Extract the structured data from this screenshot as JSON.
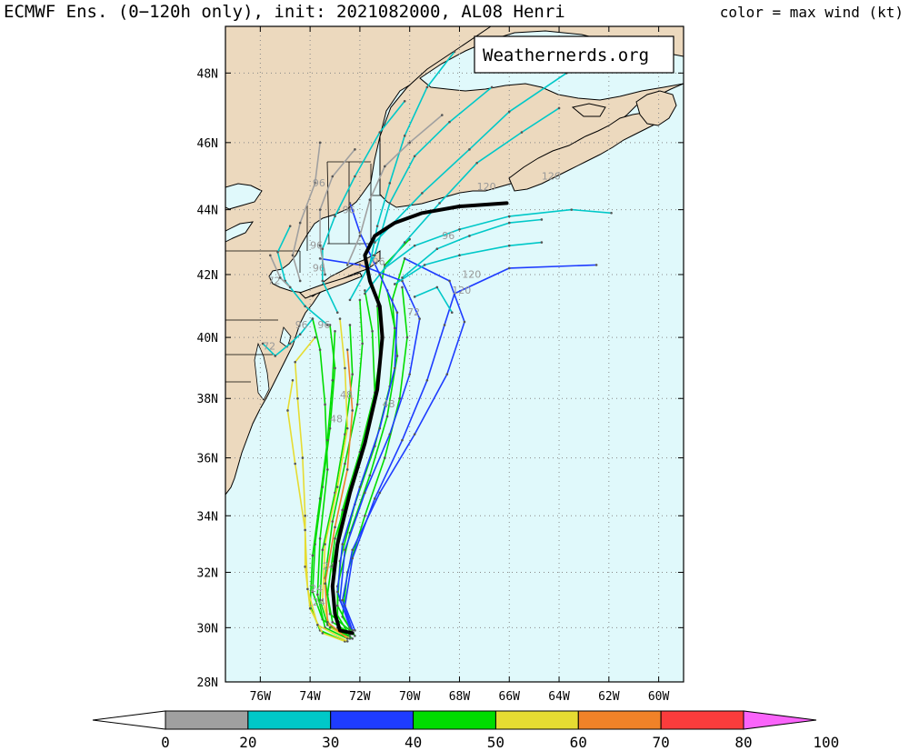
{
  "header": {
    "title": "ECMWF Ens. (0−120h only), init: 2021082000, AL08 Henri",
    "legend_label": "color = max wind (kt)"
  },
  "watermark": "Weathernerds.org",
  "map": {
    "projection": "mercator",
    "lon_range": [
      -77.4,
      -59.0
    ],
    "lat_range": [
      28.0,
      49.3
    ],
    "lon_ticks": [
      "76W",
      "74W",
      "72W",
      "70W",
      "68W",
      "66W",
      "64W",
      "62W",
      "60W"
    ],
    "lat_ticks": [
      "28N",
      "30N",
      "32N",
      "34N",
      "36N",
      "38N",
      "40N",
      "42N",
      "44N",
      "46N",
      "48N"
    ],
    "ocean_color": "#e0f9fb",
    "land_color": "#ecd9be",
    "grid": "dotted"
  },
  "colorbar": {
    "ticks": [
      "0",
      "20",
      "30",
      "40",
      "50",
      "60",
      "70",
      "80",
      "100"
    ],
    "colors": [
      "#ffffff",
      "#a0a0a0",
      "#00c8c8",
      "#1e3cff",
      "#00dc00",
      "#e6dc32",
      "#f08228",
      "#fa3c3c",
      "#f00082",
      "#fa64fa"
    ]
  },
  "mean_track": {
    "name": "ensemble mean",
    "points": [
      [
        -72.3,
        29.8
      ],
      [
        -72.8,
        29.9
      ],
      [
        -73.0,
        30.5
      ],
      [
        -73.1,
        31.5
      ],
      [
        -72.9,
        33.0
      ],
      [
        -72.4,
        34.8
      ],
      [
        -71.8,
        36.5
      ],
      [
        -71.3,
        38.3
      ],
      [
        -71.1,
        40.0
      ],
      [
        -71.2,
        41.0
      ],
      [
        -71.6,
        41.8
      ],
      [
        -71.8,
        42.6
      ],
      [
        -71.4,
        43.2
      ],
      [
        -70.6,
        43.6
      ],
      [
        -69.5,
        43.9
      ],
      [
        -68.0,
        44.1
      ],
      [
        -66.1,
        44.2
      ]
    ]
  },
  "member_tracks": [
    {
      "color": "#00dc00",
      "points": [
        [
          -72.4,
          29.8
        ],
        [
          -73.1,
          30.2
        ],
        [
          -73.3,
          31.2
        ],
        [
          -73.0,
          33.2
        ],
        [
          -72.3,
          35.2
        ],
        [
          -71.6,
          37.2
        ],
        [
          -71.2,
          39.3
        ],
        [
          -71.3,
          41.0
        ],
        [
          -71.0,
          42.3
        ],
        [
          -70.0,
          43.1
        ]
      ]
    },
    {
      "color": "#00dc00",
      "points": [
        [
          -72.5,
          29.7
        ],
        [
          -73.3,
          30.1
        ],
        [
          -73.6,
          31.0
        ],
        [
          -73.5,
          32.8
        ],
        [
          -73.0,
          34.8
        ],
        [
          -72.6,
          36.8
        ],
        [
          -72.3,
          38.8
        ],
        [
          -72.4,
          40.4
        ]
      ]
    },
    {
      "color": "#00dc00",
      "points": [
        [
          -72.3,
          29.6
        ],
        [
          -72.9,
          30.0
        ],
        [
          -72.9,
          31.5
        ],
        [
          -72.4,
          33.4
        ],
        [
          -71.6,
          35.4
        ],
        [
          -70.9,
          37.4
        ],
        [
          -70.5,
          39.4
        ],
        [
          -70.7,
          41.2
        ],
        [
          -70.2,
          42.5
        ]
      ]
    },
    {
      "color": "#00dc00",
      "points": [
        [
          -72.6,
          29.7
        ],
        [
          -73.5,
          30.3
        ],
        [
          -73.9,
          31.3
        ],
        [
          -73.8,
          33.0
        ],
        [
          -73.5,
          35.0
        ],
        [
          -73.2,
          37.0
        ],
        [
          -73.0,
          39.0
        ],
        [
          -73.2,
          40.4
        ]
      ]
    },
    {
      "color": "#00dc00",
      "points": [
        [
          -72.2,
          29.7
        ],
        [
          -72.7,
          30.4
        ],
        [
          -72.5,
          32.0
        ],
        [
          -71.8,
          34.0
        ],
        [
          -71.0,
          36.0
        ],
        [
          -70.4,
          38.0
        ],
        [
          -70.1,
          40.0
        ],
        [
          -70.3,
          41.6
        ]
      ]
    },
    {
      "color": "#00dc00",
      "points": [
        [
          -72.4,
          29.9
        ],
        [
          -73.2,
          30.5
        ],
        [
          -73.4,
          31.8
        ],
        [
          -73.1,
          33.8
        ],
        [
          -72.6,
          35.8
        ],
        [
          -72.1,
          37.8
        ],
        [
          -71.9,
          39.8
        ],
        [
          -72.0,
          41.2
        ]
      ]
    },
    {
      "color": "#00dc00",
      "points": [
        [
          -72.5,
          29.6
        ],
        [
          -73.4,
          30.0
        ],
        [
          -73.7,
          31.2
        ],
        [
          -73.6,
          33.2
        ],
        [
          -73.3,
          35.6
        ],
        [
          -73.4,
          37.8
        ],
        [
          -73.6,
          39.6
        ],
        [
          -73.9,
          40.6
        ]
      ]
    },
    {
      "color": "#00dc00",
      "points": [
        [
          -72.3,
          29.8
        ],
        [
          -72.9,
          30.8
        ],
        [
          -72.8,
          32.4
        ],
        [
          -72.2,
          34.4
        ],
        [
          -71.4,
          36.4
        ],
        [
          -70.8,
          38.4
        ],
        [
          -70.6,
          40.3
        ],
        [
          -70.9,
          41.5
        ]
      ]
    },
    {
      "color": "#00dc00",
      "points": [
        [
          -72.6,
          29.5
        ],
        [
          -73.6,
          29.9
        ],
        [
          -74.0,
          30.8
        ],
        [
          -73.9,
          32.6
        ],
        [
          -73.6,
          34.6
        ],
        [
          -73.3,
          36.6
        ],
        [
          -73.1,
          38.6
        ],
        [
          -73.0,
          40.2
        ]
      ]
    },
    {
      "color": "#00dc00",
      "points": [
        [
          -72.4,
          29.7
        ],
        [
          -73.0,
          30.6
        ],
        [
          -73.1,
          32.2
        ],
        [
          -72.7,
          34.2
        ],
        [
          -72.0,
          36.2
        ],
        [
          -71.4,
          38.2
        ],
        [
          -71.5,
          40.2
        ],
        [
          -71.8,
          41.5
        ]
      ]
    },
    {
      "color": "#e6dc32",
      "points": [
        [
          -72.6,
          29.5
        ],
        [
          -73.5,
          29.8
        ],
        [
          -74.0,
          30.7
        ],
        [
          -74.2,
          32.2
        ],
        [
          -74.2,
          34.0
        ],
        [
          -74.3,
          36.0
        ],
        [
          -74.5,
          38.0
        ],
        [
          -74.6,
          39.2
        ],
        [
          -73.8,
          40.0
        ]
      ]
    },
    {
      "color": "#e6dc32",
      "points": [
        [
          -72.4,
          29.6
        ],
        [
          -73.2,
          30.0
        ],
        [
          -73.5,
          31.0
        ],
        [
          -73.4,
          33.0
        ],
        [
          -72.9,
          35.0
        ],
        [
          -72.5,
          37.0
        ],
        [
          -72.6,
          39.0
        ],
        [
          -72.8,
          40.6
        ]
      ]
    },
    {
      "color": "#e6dc32",
      "points": [
        [
          -72.5,
          29.5
        ],
        [
          -73.7,
          30.1
        ],
        [
          -74.1,
          31.4
        ],
        [
          -74.2,
          33.5
        ],
        [
          -74.6,
          35.8
        ],
        [
          -74.9,
          37.6
        ],
        [
          -74.7,
          38.6
        ]
      ]
    },
    {
      "color": "#f08228",
      "points": [
        [
          -72.5,
          29.6
        ],
        [
          -73.3,
          30.2
        ],
        [
          -73.4,
          31.6
        ],
        [
          -73.0,
          33.6
        ],
        [
          -72.5,
          35.6
        ],
        [
          -72.3,
          37.6
        ],
        [
          -72.5,
          39.6
        ]
      ]
    },
    {
      "color": "#1e3cff",
      "points": [
        [
          -72.2,
          29.9
        ],
        [
          -72.6,
          30.8
        ],
        [
          -72.3,
          32.5
        ],
        [
          -71.4,
          34.6
        ],
        [
          -70.3,
          36.6
        ],
        [
          -69.3,
          38.6
        ],
        [
          -68.6,
          40.4
        ],
        [
          -68.2,
          41.4
        ],
        [
          -66.0,
          42.2
        ],
        [
          -62.5,
          42.3
        ]
      ]
    },
    {
      "color": "#1e3cff",
      "points": [
        [
          -72.3,
          29.9
        ],
        [
          -72.8,
          31.0
        ],
        [
          -72.6,
          32.8
        ],
        [
          -71.8,
          34.8
        ],
        [
          -70.8,
          36.8
        ],
        [
          -70.0,
          38.8
        ],
        [
          -69.6,
          40.6
        ],
        [
          -70.3,
          41.8
        ],
        [
          -72.0,
          42.3
        ],
        [
          -73.6,
          42.5
        ]
      ]
    },
    {
      "color": "#1e3cff",
      "points": [
        [
          -72.4,
          30.0
        ],
        [
          -72.9,
          31.3
        ],
        [
          -72.7,
          33.0
        ],
        [
          -72.0,
          35.0
        ],
        [
          -71.2,
          37.0
        ],
        [
          -70.6,
          39.0
        ],
        [
          -70.5,
          40.8
        ],
        [
          -71.2,
          42.0
        ],
        [
          -72.0,
          43.3
        ],
        [
          -72.4,
          44.2
        ]
      ]
    },
    {
      "color": "#1e3cff",
      "points": [
        [
          -72.3,
          29.9
        ],
        [
          -72.7,
          31.0
        ],
        [
          -72.3,
          32.8
        ],
        [
          -71.2,
          34.8
        ],
        [
          -69.8,
          36.8
        ],
        [
          -68.5,
          38.8
        ],
        [
          -67.8,
          40.5
        ],
        [
          -68.4,
          41.8
        ],
        [
          -70.2,
          42.5
        ]
      ]
    },
    {
      "color": "#00c8c8",
      "points": [
        [
          -73.3,
          40.4
        ],
        [
          -74.2,
          41.0
        ],
        [
          -75.0,
          41.8
        ],
        [
          -75.3,
          42.7
        ],
        [
          -74.8,
          43.5
        ]
      ]
    },
    {
      "color": "#00c8c8",
      "points": [
        [
          -72.9,
          40.8
        ],
        [
          -73.5,
          41.8
        ],
        [
          -73.5,
          42.8
        ],
        [
          -73.0,
          43.8
        ],
        [
          -72.2,
          45.0
        ],
        [
          -71.2,
          46.3
        ],
        [
          -70.2,
          47.2
        ]
      ]
    },
    {
      "color": "#00c8c8",
      "points": [
        [
          -71.8,
          41.4
        ],
        [
          -71.0,
          42.2
        ],
        [
          -69.8,
          42.9
        ],
        [
          -68.0,
          43.4
        ],
        [
          -66.0,
          43.8
        ],
        [
          -63.5,
          44.0
        ],
        [
          -61.9,
          43.9
        ]
      ]
    },
    {
      "color": "#00c8c8",
      "points": [
        [
          -70.6,
          41.7
        ],
        [
          -69.4,
          42.3
        ],
        [
          -68.0,
          42.6
        ],
        [
          -66.0,
          42.9
        ],
        [
          -64.7,
          43.0
        ]
      ]
    },
    {
      "color": "#00c8c8",
      "points": [
        [
          -71.2,
          42.0
        ],
        [
          -70.2,
          43.0
        ],
        [
          -68.8,
          44.2
        ],
        [
          -67.3,
          45.4
        ],
        [
          -65.5,
          46.3
        ],
        [
          -64.0,
          47.0
        ]
      ]
    },
    {
      "color": "#00c8c8",
      "points": [
        [
          -71.6,
          42.3
        ],
        [
          -71.3,
          43.5
        ],
        [
          -70.8,
          44.8
        ],
        [
          -70.2,
          46.2
        ],
        [
          -69.3,
          47.6
        ],
        [
          -68.2,
          48.6
        ]
      ]
    },
    {
      "color": "#00c8c8",
      "points": [
        [
          -70.3,
          41.9
        ],
        [
          -68.9,
          42.8
        ],
        [
          -67.6,
          43.2
        ],
        [
          -66.0,
          43.6
        ],
        [
          -64.7,
          43.7
        ]
      ]
    },
    {
      "color": "#00c8c8",
      "points": [
        [
          -69.8,
          41.3
        ],
        [
          -68.9,
          41.6
        ],
        [
          -68.3,
          40.8
        ]
      ]
    },
    {
      "color": "#00c8c8",
      "points": [
        [
          -73.9,
          40.6
        ],
        [
          -74.4,
          40.1
        ],
        [
          -74.8,
          39.8
        ],
        [
          -75.4,
          39.4
        ],
        [
          -75.9,
          39.8
        ]
      ]
    },
    {
      "color": "#00c8c8",
      "points": [
        [
          -72.4,
          41.2
        ],
        [
          -71.4,
          42.6
        ],
        [
          -70.8,
          44.2
        ],
        [
          -69.8,
          45.6
        ],
        [
          -68.4,
          46.6
        ],
        [
          -66.7,
          47.6
        ]
      ]
    },
    {
      "color": "#00c8c8",
      "points": [
        [
          -71.4,
          43.0
        ],
        [
          -69.5,
          44.5
        ],
        [
          -67.6,
          45.8
        ],
        [
          -66.0,
          46.9
        ],
        [
          -63.7,
          48.0
        ]
      ]
    },
    {
      "color": "#a0a0a0",
      "points": [
        [
          -74.4,
          41.8
        ],
        [
          -74.7,
          42.6
        ],
        [
          -74.4,
          43.6
        ],
        [
          -73.8,
          44.8
        ],
        [
          -73.6,
          46.0
        ]
      ]
    },
    {
      "color": "#a0a0a0",
      "points": [
        [
          -73.4,
          42.0
        ],
        [
          -73.6,
          42.9
        ],
        [
          -73.6,
          44.0
        ],
        [
          -73.1,
          45.0
        ],
        [
          -72.2,
          45.8
        ]
      ]
    },
    {
      "color": "#a0a0a0",
      "points": [
        [
          -72.5,
          42.3
        ],
        [
          -72.0,
          43.2
        ],
        [
          -71.6,
          44.3
        ],
        [
          -71.0,
          45.3
        ],
        [
          -70.0,
          46.0
        ],
        [
          -68.7,
          46.8
        ]
      ]
    },
    {
      "color": "#a0a0a0",
      "points": [
        [
          -74.8,
          41.6
        ],
        [
          -75.2,
          41.9
        ],
        [
          -75.6,
          42.6
        ]
      ]
    }
  ],
  "track_labels": [
    {
      "text": "96",
      "lon": -73.9,
      "lat": 44.7
    },
    {
      "text": "96",
      "lon": -74.0,
      "lat": 42.8
    },
    {
      "text": "96",
      "lon": -73.9,
      "lat": 42.1
    },
    {
      "text": "96",
      "lon": -72.7,
      "lat": 43.9
    },
    {
      "text": "96",
      "lon": -71.5,
      "lat": 42.3
    },
    {
      "text": "96",
      "lon": -68.7,
      "lat": 43.1
    },
    {
      "text": "96",
      "lon": -74.6,
      "lat": 40.3
    },
    {
      "text": "96",
      "lon": -73.7,
      "lat": 40.3
    },
    {
      "text": "72",
      "lon": -75.7,
      "lat": 41.7
    },
    {
      "text": "72",
      "lon": -75.9,
      "lat": 39.6
    },
    {
      "text": "72",
      "lon": -70.1,
      "lat": 40.7
    },
    {
      "text": "120",
      "lon": -67.3,
      "lat": 44.6
    },
    {
      "text": "120",
      "lon": -64.7,
      "lat": 44.9
    },
    {
      "text": "120",
      "lon": -67.9,
      "lat": 41.9
    },
    {
      "text": "120",
      "lon": -68.3,
      "lat": 41.4
    },
    {
      "text": "48",
      "lon": -72.8,
      "lat": 38.0
    },
    {
      "text": "48",
      "lon": -71.1,
      "lat": 37.7
    },
    {
      "text": "48",
      "lon": -73.2,
      "lat": 37.2
    },
    {
      "text": "24",
      "lon": -73.5,
      "lat": 32.1
    },
    {
      "text": "24",
      "lon": -74.0,
      "lat": 31.3
    },
    {
      "text": "24",
      "lon": -73.9,
      "lat": 30.8
    }
  ]
}
